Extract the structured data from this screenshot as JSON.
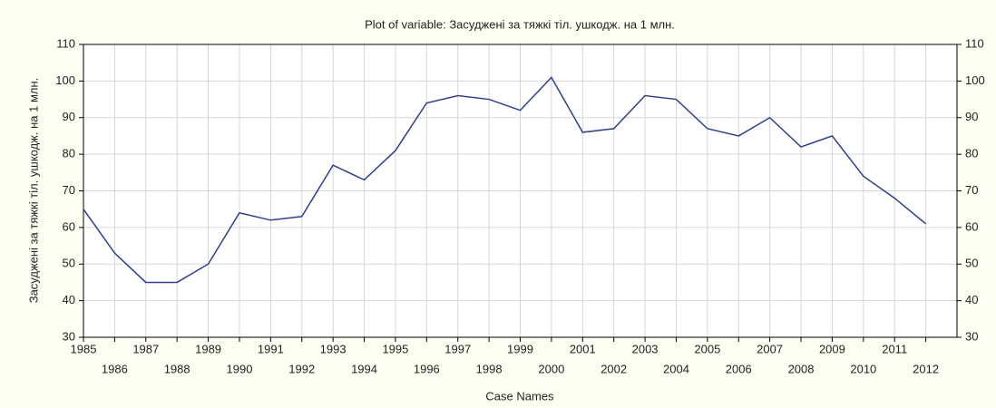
{
  "chart_data": {
    "type": "line",
    "title": "Plot of variable: Засуджені за тяжкі тіл. ушкодж. на 1 млн.",
    "x_label": "Case Names",
    "y_label": "Засуджені за тяжкі тіл. ушкодж. на 1 млн.",
    "x": [
      1985,
      1986,
      1987,
      1988,
      1989,
      1990,
      1991,
      1992,
      1993,
      1994,
      1995,
      1996,
      1997,
      1998,
      1999,
      2000,
      2001,
      2002,
      2003,
      2004,
      2005,
      2006,
      2007,
      2008,
      2009,
      2010,
      2011,
      2012
    ],
    "series": [
      {
        "name": "Засуджені за тяжкі тіл. ушкодж. на 1 млн.",
        "color": "#2e3f93",
        "values": [
          65,
          53,
          45,
          45,
          50,
          64,
          62,
          63,
          77,
          73,
          81,
          94,
          96,
          95,
          92,
          101,
          86,
          87,
          96,
          95,
          87,
          85,
          90,
          82,
          85,
          74,
          68,
          61
        ]
      }
    ],
    "xlim": [
      1985,
      2013
    ],
    "xticks": [
      1985,
      1986,
      1987,
      1988,
      1989,
      1990,
      1991,
      1992,
      1993,
      1994,
      1995,
      1996,
      1997,
      1998,
      1999,
      2000,
      2001,
      2002,
      2003,
      2004,
      2005,
      2006,
      2007,
      2008,
      2009,
      2010,
      2011,
      2012
    ],
    "ylim": [
      30,
      110
    ],
    "yticks": [
      30,
      40,
      50,
      60,
      70,
      80,
      90,
      100,
      110
    ],
    "y2lim": [
      30,
      110
    ],
    "y2ticks": [
      30,
      40,
      50,
      60,
      70,
      80,
      90,
      100,
      110
    ],
    "grid": true
  }
}
